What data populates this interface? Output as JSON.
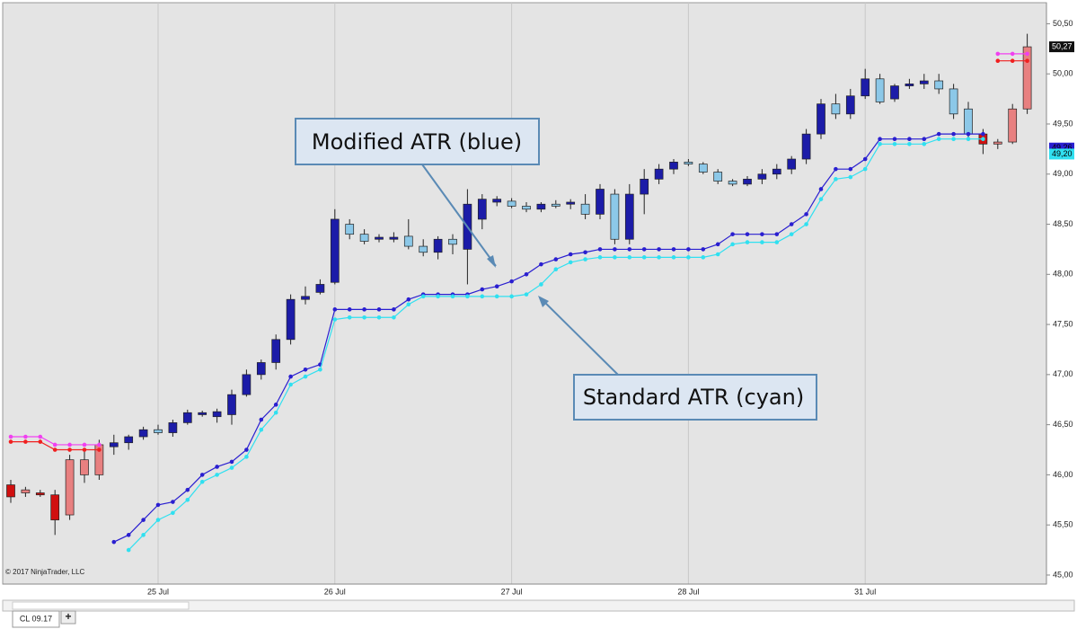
{
  "chart_data": {
    "type": "candlestick",
    "categories": [
      null,
      null,
      null,
      null,
      null,
      null,
      null,
      null,
      null,
      null,
      "25 Jul",
      null,
      null,
      null,
      null,
      null,
      null,
      null,
      null,
      null,
      null,
      null,
      "26 Jul",
      null,
      null,
      null,
      null,
      null,
      null,
      null,
      null,
      null,
      null,
      null,
      "27 Jul",
      null,
      null,
      null,
      null,
      null,
      null,
      null,
      null,
      null,
      null,
      null,
      "28 Jul",
      null,
      null,
      null,
      null,
      null,
      null,
      null,
      null,
      null,
      null,
      null,
      "31 Jul",
      null,
      null,
      null,
      null,
      null,
      null,
      null,
      null,
      null,
      null,
      null
    ],
    "open": [
      45.9,
      45.82,
      45.82,
      45.8,
      45.6,
      46.15,
      46.0,
      46.28,
      46.32,
      46.38,
      46.45,
      46.42,
      46.52,
      46.62,
      46.58,
      46.6,
      46.8,
      47.0,
      47.12,
      47.35,
      47.75,
      47.82,
      47.92,
      48.5,
      48.4,
      48.35,
      48.37,
      48.38,
      48.28,
      48.22,
      48.35,
      48.25,
      48.55,
      48.72,
      48.73,
      48.68,
      48.65,
      48.7,
      48.7,
      48.7,
      48.6,
      48.8,
      48.35,
      48.8,
      48.95,
      49.05,
      49.12,
      49.1,
      49.02,
      48.93,
      48.9,
      48.95,
      49.0,
      49.05,
      49.15,
      49.4,
      49.7,
      49.6,
      49.78,
      49.95,
      49.75,
      49.88,
      49.9,
      49.93,
      49.85,
      49.65,
      49.4,
      49.3,
      49.32,
      49.65
    ],
    "high": [
      45.95,
      45.88,
      45.85,
      45.85,
      46.2,
      46.25,
      46.35,
      46.4,
      46.4,
      46.48,
      46.5,
      46.55,
      46.65,
      46.64,
      46.66,
      46.85,
      47.05,
      47.15,
      47.4,
      47.8,
      47.88,
      47.95,
      48.65,
      48.55,
      48.45,
      48.4,
      48.42,
      48.55,
      48.35,
      48.38,
      48.4,
      48.85,
      48.8,
      48.78,
      48.76,
      48.72,
      48.72,
      48.74,
      48.75,
      48.8,
      48.9,
      48.85,
      48.9,
      49.05,
      49.1,
      49.15,
      49.15,
      49.12,
      49.05,
      48.95,
      48.98,
      49.05,
      49.1,
      49.18,
      49.45,
      49.75,
      49.8,
      49.85,
      50.05,
      50.0,
      49.9,
      49.95,
      50.0,
      50.0,
      49.9,
      49.72,
      49.45,
      49.35,
      49.7,
      50.4
    ],
    "low": [
      45.72,
      45.78,
      45.78,
      45.4,
      45.55,
      45.92,
      45.95,
      46.2,
      46.25,
      46.35,
      46.4,
      46.38,
      46.5,
      46.58,
      46.52,
      46.5,
      46.78,
      46.95,
      47.05,
      47.3,
      47.7,
      47.8,
      47.9,
      48.35,
      48.3,
      48.32,
      48.32,
      48.25,
      48.18,
      48.15,
      48.2,
      47.9,
      48.45,
      48.68,
      48.66,
      48.62,
      48.62,
      48.66,
      48.65,
      48.55,
      48.55,
      48.3,
      48.3,
      48.6,
      48.9,
      49.0,
      49.08,
      49.0,
      48.9,
      48.88,
      48.88,
      48.9,
      48.95,
      49.0,
      49.1,
      49.35,
      49.55,
      49.55,
      49.75,
      49.7,
      49.72,
      49.85,
      49.85,
      49.8,
      49.55,
      49.35,
      49.2,
      49.25,
      49.3,
      49.6
    ],
    "close": [
      45.78,
      45.85,
      45.8,
      45.55,
      46.15,
      46.0,
      46.3,
      46.32,
      46.38,
      46.45,
      46.42,
      46.52,
      46.62,
      46.6,
      46.63,
      46.8,
      47.0,
      47.12,
      47.35,
      47.75,
      47.78,
      47.9,
      48.55,
      48.4,
      48.33,
      48.37,
      48.35,
      48.28,
      48.22,
      48.35,
      48.3,
      48.7,
      48.75,
      48.75,
      48.68,
      48.65,
      48.7,
      48.68,
      48.72,
      48.6,
      48.85,
      48.35,
      48.8,
      48.95,
      49.05,
      49.12,
      49.1,
      49.02,
      48.93,
      48.9,
      48.95,
      49.0,
      49.05,
      49.15,
      49.4,
      49.7,
      49.6,
      49.78,
      49.95,
      49.72,
      49.88,
      49.9,
      49.93,
      49.85,
      49.6,
      49.4,
      49.3,
      49.32,
      49.65,
      50.27
    ],
    "colors": [
      "#d01010",
      "#e88080",
      "#d01010",
      "#d01010",
      "#e88080",
      "#e88080",
      "#e88080",
      "#1c1ca8",
      "#1c1ca8",
      "#1c1ca8",
      "#8cc8e8",
      "#1c1ca8",
      "#1c1ca8",
      "#1c1ca8",
      "#1c1ca8",
      "#1c1ca8",
      "#1c1ca8",
      "#1c1ca8",
      "#1c1ca8",
      "#1c1ca8",
      "#1c1ca8",
      "#1c1ca8",
      "#1c1ca8",
      "#8cc8e8",
      "#8cc8e8",
      "#1c1ca8",
      "#1c1ca8",
      "#8cc8e8",
      "#8cc8e8",
      "#1c1ca8",
      "#8cc8e8",
      "#1c1ca8",
      "#1c1ca8",
      "#1c1ca8",
      "#8cc8e8",
      "#8cc8e8",
      "#1c1ca8",
      "#8cc8e8",
      "#1c1ca8",
      "#8cc8e8",
      "#1c1ca8",
      "#8cc8e8",
      "#1c1ca8",
      "#1c1ca8",
      "#1c1ca8",
      "#1c1ca8",
      "#8cc8e8",
      "#8cc8e8",
      "#8cc8e8",
      "#8cc8e8",
      "#1c1ca8",
      "#1c1ca8",
      "#1c1ca8",
      "#1c1ca8",
      "#1c1ca8",
      "#1c1ca8",
      "#8cc8e8",
      "#1c1ca8",
      "#1c1ca8",
      "#8cc8e8",
      "#1c1ca8",
      "#1c1ca8",
      "#1c1ca8",
      "#8cc8e8",
      "#8cc8e8",
      "#8cc8e8",
      "#d01010",
      "#e88080",
      "#e88080",
      "#e88080"
    ],
    "lines": [
      {
        "color": "#2a1fd0",
        "values": [
          null,
          null,
          null,
          null,
          null,
          null,
          null,
          45.33,
          45.4,
          45.55,
          45.7,
          45.73,
          45.85,
          46.0,
          46.08,
          46.13,
          46.25,
          46.55,
          46.7,
          46.98,
          47.05,
          47.1,
          47.65,
          47.65,
          47.65,
          47.65,
          47.65,
          47.75,
          47.8,
          47.8,
          47.8,
          47.8,
          47.85,
          47.88,
          47.93,
          48.0,
          48.1,
          48.15,
          48.2,
          48.22,
          48.25,
          48.25,
          48.25,
          48.25,
          48.25,
          48.25,
          48.25,
          48.25,
          48.3,
          48.4,
          48.4,
          48.4,
          48.4,
          48.5,
          48.6,
          48.85,
          49.05,
          49.05,
          49.15,
          49.35,
          49.35,
          49.35,
          49.35,
          49.4,
          49.4,
          49.4,
          49.4,
          null,
          null,
          null
        ]
      },
      {
        "color": "#30e0f0",
        "values": [
          null,
          null,
          null,
          null,
          null,
          null,
          null,
          null,
          45.25,
          45.4,
          45.55,
          45.62,
          45.75,
          45.93,
          46.0,
          46.07,
          46.18,
          46.45,
          46.62,
          46.9,
          46.98,
          47.05,
          47.55,
          47.57,
          47.57,
          47.57,
          47.57,
          47.7,
          47.78,
          47.78,
          47.78,
          47.78,
          47.78,
          47.78,
          47.78,
          47.8,
          47.9,
          48.05,
          48.12,
          48.15,
          48.17,
          48.17,
          48.17,
          48.17,
          48.17,
          48.17,
          48.17,
          48.17,
          48.2,
          48.3,
          48.32,
          48.32,
          48.32,
          48.4,
          48.5,
          48.75,
          48.95,
          48.97,
          49.05,
          49.3,
          49.3,
          49.3,
          49.3,
          49.35,
          49.35,
          49.35,
          49.35,
          null,
          null,
          null
        ]
      },
      {
        "color": "#f040f0",
        "values": [
          46.38,
          46.38,
          46.38,
          46.3,
          46.3,
          46.3,
          46.3,
          null,
          null,
          null,
          null,
          null,
          null,
          null,
          null,
          null,
          null,
          null,
          null,
          null,
          null,
          null,
          null,
          null,
          null,
          null,
          null,
          null,
          null,
          null,
          null,
          null,
          null,
          null,
          null,
          null,
          null,
          null,
          null,
          null,
          null,
          null,
          null,
          null,
          null,
          null,
          null,
          null,
          null,
          null,
          null,
          null,
          null,
          null,
          null,
          null,
          null,
          null,
          null,
          null,
          null,
          null,
          null,
          null,
          null,
          null,
          null,
          50.2,
          50.2,
          50.2
        ]
      },
      {
        "color": "#f02020",
        "values": [
          46.33,
          46.33,
          46.33,
          46.25,
          46.25,
          46.25,
          46.25,
          null,
          null,
          null,
          null,
          null,
          null,
          null,
          null,
          null,
          null,
          null,
          null,
          null,
          null,
          null,
          null,
          null,
          null,
          null,
          null,
          null,
          null,
          null,
          null,
          null,
          null,
          null,
          null,
          null,
          null,
          null,
          null,
          null,
          null,
          null,
          null,
          null,
          null,
          null,
          null,
          null,
          null,
          null,
          null,
          null,
          null,
          null,
          null,
          null,
          null,
          null,
          null,
          null,
          null,
          null,
          null,
          null,
          null,
          null,
          null,
          50.13,
          50.13,
          50.13
        ]
      }
    ],
    "ylim": [
      44.91,
      50.71
    ],
    "yticks": [
      {
        "value": 45,
        "label": "45,00"
      },
      {
        "value": 45.5,
        "label": "45,50"
      },
      {
        "value": 46,
        "label": "46,00"
      },
      {
        "value": 46.5,
        "label": "46,50"
      },
      {
        "value": 47,
        "label": "47,00"
      },
      {
        "value": 47.5,
        "label": "47,50"
      },
      {
        "value": 48,
        "label": "48,00"
      },
      {
        "value": 48.5,
        "label": "48,50"
      },
      {
        "value": 49,
        "label": "49,00"
      },
      {
        "value": 49.5,
        "label": "49,50"
      },
      {
        "value": 50,
        "label": "50,00"
      },
      {
        "value": 50.5,
        "label": "50,50"
      }
    ],
    "price_labels": [
      {
        "value": 50.27,
        "label": "50,27",
        "color": "#111111"
      },
      {
        "value": 49.26,
        "label": "49,26",
        "color": "#2a1fd0"
      },
      {
        "value": 49.2,
        "label": "49,20",
        "color": "#30e0f0"
      }
    ],
    "grid": true,
    "annotations": [
      "Modified ATR (blue)",
      "Standard ATR (cyan)"
    ],
    "copyright": "© 2017 NinjaTrader, LLC",
    "tab": "CL 09.17",
    "tab_add": "+"
  }
}
